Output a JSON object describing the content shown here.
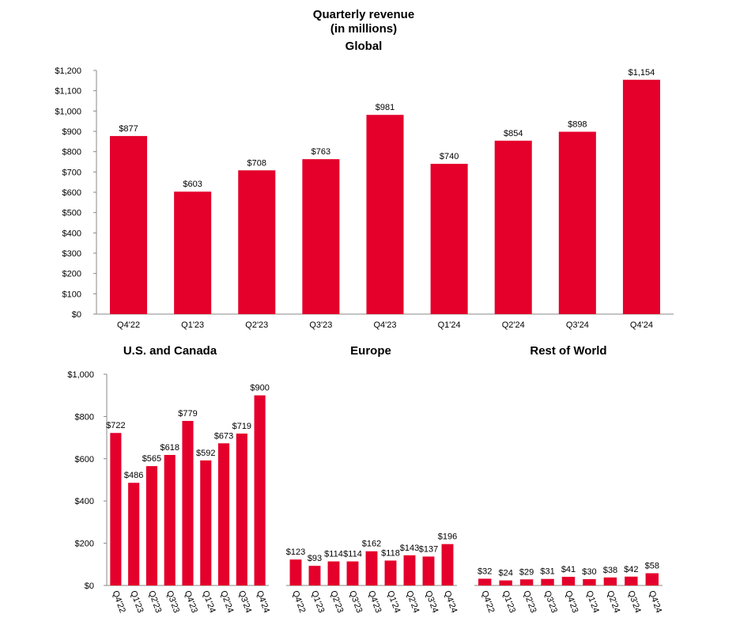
{
  "title_line1": "Quarterly revenue",
  "title_line2": "(in millions)",
  "colors": {
    "bar": "#e4002b",
    "axis": "#888888"
  },
  "chart_data": [
    {
      "type": "bar",
      "title": "Global",
      "categories": [
        "Q4'22",
        "Q1'23",
        "Q2'23",
        "Q3'23",
        "Q4'23",
        "Q1'24",
        "Q2'24",
        "Q3'24",
        "Q4'24"
      ],
      "values": [
        877,
        603,
        708,
        763,
        981,
        740,
        854,
        898,
        1154
      ],
      "value_labels": [
        "$877",
        "$603",
        "$708",
        "$763",
        "$981",
        "$740",
        "$854",
        "$898",
        "$1,154"
      ],
      "ylim": [
        0,
        1200
      ],
      "yticks": [
        0,
        100,
        200,
        300,
        400,
        500,
        600,
        700,
        800,
        900,
        1000,
        1100,
        1200
      ],
      "ytick_labels": [
        "$0",
        "$100",
        "$200",
        "$300",
        "$400",
        "$500",
        "$600",
        "$700",
        "$800",
        "$900",
        "$1,000",
        "$1,100",
        "$1,200"
      ],
      "xlabel": "",
      "ylabel": "",
      "grid": false
    },
    {
      "type": "bar",
      "title": "U.S. and Canada",
      "categories": [
        "Q4'22",
        "Q1'23",
        "Q2'23",
        "Q3'23",
        "Q4'23",
        "Q1'24",
        "Q2'24",
        "Q3'24",
        "Q4'24"
      ],
      "values": [
        722,
        486,
        565,
        618,
        779,
        592,
        673,
        719,
        900
      ],
      "value_labels": [
        "$722",
        "$486",
        "$565",
        "$618",
        "$779",
        "$592",
        "$673",
        "$719",
        "$900"
      ],
      "ylim": [
        0,
        1000
      ],
      "yticks": [
        0,
        200,
        400,
        600,
        800,
        1000
      ],
      "ytick_labels": [
        "$0",
        "$200",
        "$400",
        "$600",
        "$800",
        "$1,000"
      ],
      "xlabel": "",
      "ylabel": "",
      "grid": false
    },
    {
      "type": "bar",
      "title": "Europe",
      "categories": [
        "Q4'22",
        "Q1'23",
        "Q2'23",
        "Q3'23",
        "Q4'23",
        "Q1'24",
        "Q2'24",
        "Q3'24",
        "Q4'24"
      ],
      "values": [
        123,
        93,
        114,
        114,
        162,
        118,
        143,
        137,
        196
      ],
      "value_labels": [
        "$123",
        "$93",
        "$114",
        "$114",
        "$162",
        "$118",
        "$143",
        "$137",
        "$196"
      ],
      "ylim": [
        0,
        1000
      ],
      "xlabel": "",
      "ylabel": "",
      "grid": false
    },
    {
      "type": "bar",
      "title": "Rest of World",
      "categories": [
        "Q4'22",
        "Q1'23",
        "Q2'23",
        "Q3'23",
        "Q4'23",
        "Q1'24",
        "Q2'24",
        "Q3'24",
        "Q4'24"
      ],
      "values": [
        32,
        24,
        29,
        31,
        41,
        30,
        38,
        42,
        58
      ],
      "value_labels": [
        "$32",
        "$24",
        "$29",
        "$31",
        "$41",
        "$30",
        "$38",
        "$42",
        "$58"
      ],
      "ylim": [
        0,
        1000
      ],
      "xlabel": "",
      "ylabel": "",
      "grid": false
    }
  ]
}
